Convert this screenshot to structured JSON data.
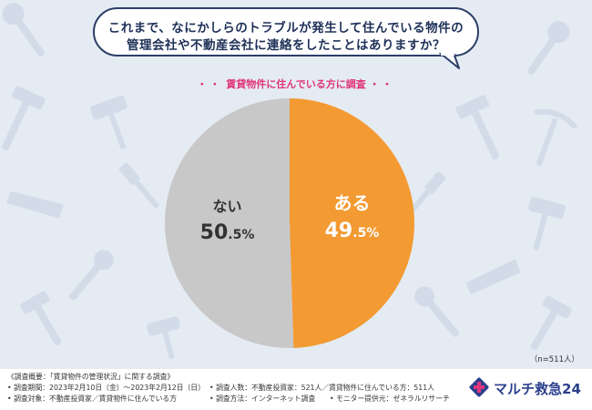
{
  "question": {
    "line1": "これまで、なにかしらのトラブルが発生して住んでいる物件の",
    "line2": "管理会社や不動産会社に連絡をしたことはありますか？"
  },
  "subtitle": {
    "dots_left": "・・",
    "text": "賃貸物件に住んでいる方に調査",
    "dots_right": "・・"
  },
  "chart_data": {
    "type": "pie",
    "slices": [
      {
        "label": "ある",
        "value_int": "49",
        "value_dec": ".5",
        "unit": "%",
        "value": 49.5,
        "color": "#f39a32"
      },
      {
        "label": "ない",
        "value_int": "50",
        "value_dec": ".5",
        "unit": "%",
        "value": 50.5,
        "color": "#c8c8c8"
      }
    ],
    "start": "12 o'clock, clockwise"
  },
  "n_label": "（n=511人）",
  "footer": {
    "overview": "《調査概要：「賃貸物件の管理状況」に関する調査》",
    "period": "• 調査期間：2023年2月10日（金）〜2023年2月12日（日）",
    "respondents": "• 調査人数：不動産投資家：521人／賃貸物件に住んでいる方：511人",
    "target": "• 調査対象：不動産投資家／賃貸物件に住んでいる方",
    "method": "• 調査方法：インターネット調査",
    "provider": "• モニター提供元：ゼネラルリサーチ"
  },
  "logo": {
    "text": "マルチ救急24",
    "colors": {
      "square": "#2b3f8c",
      "cross": "#e0357a"
    }
  },
  "colors": {
    "background": "#e4ebf3",
    "bubble_border": "#2b3e67",
    "accent_pink": "#e0357a"
  }
}
